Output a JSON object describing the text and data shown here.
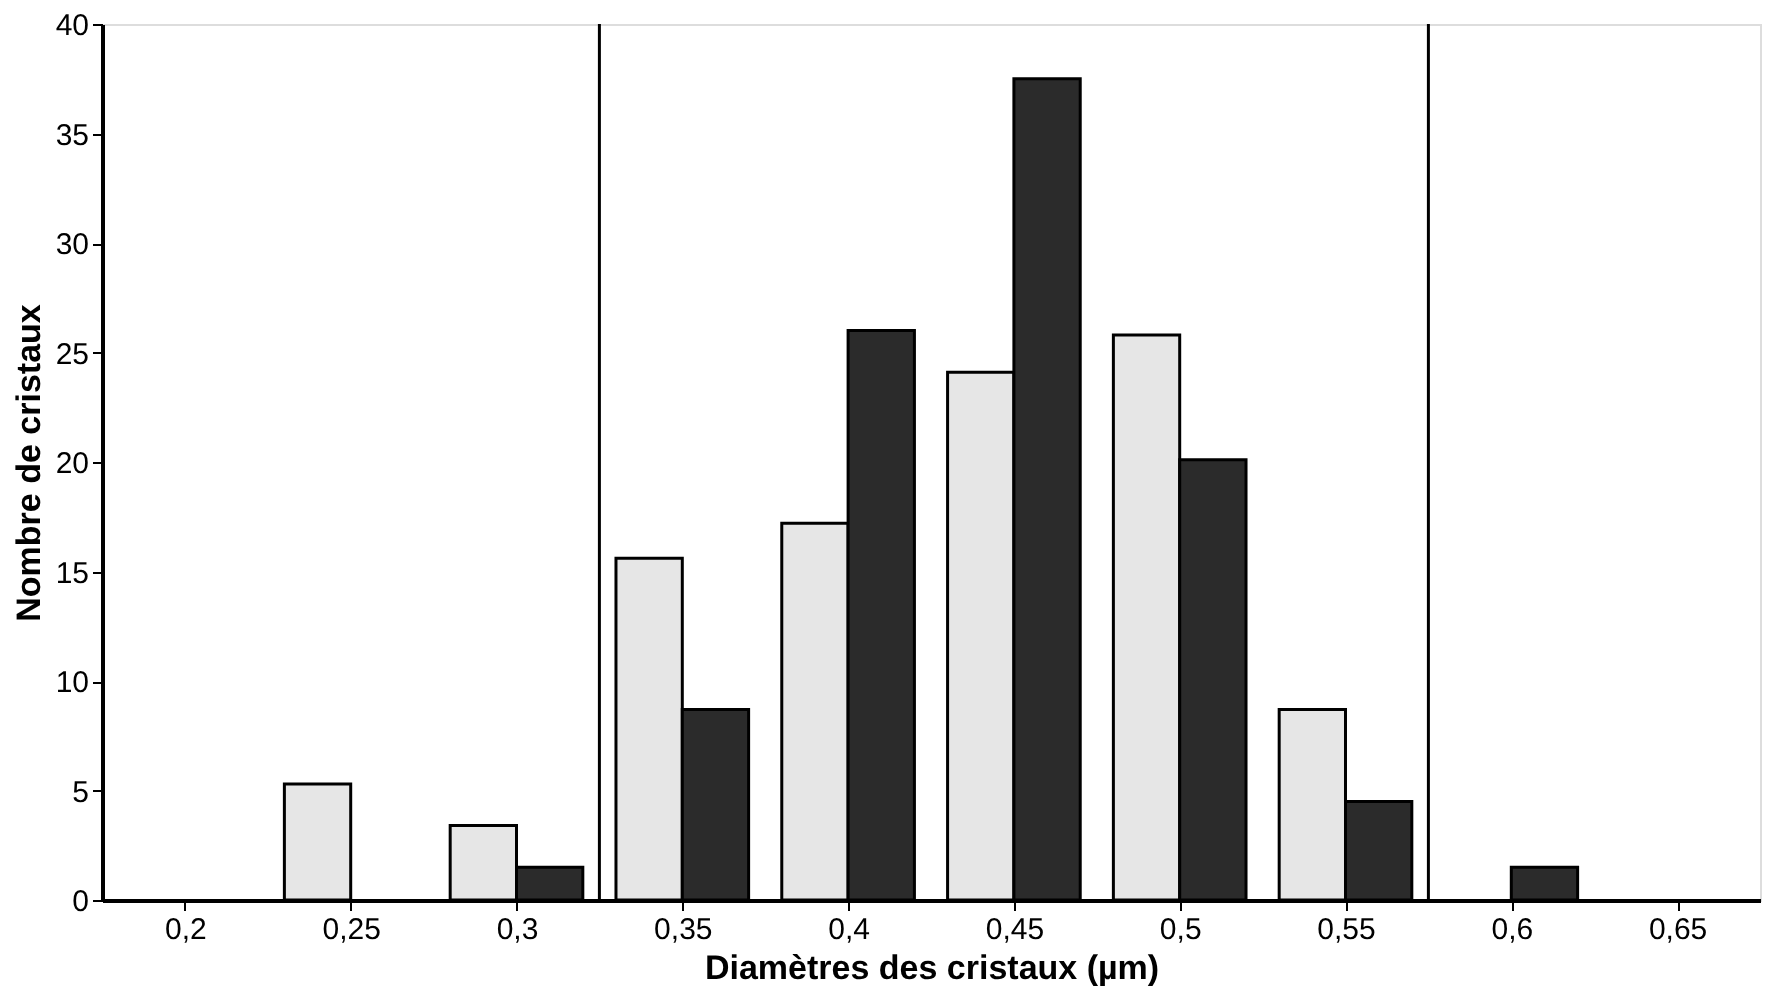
{
  "chart_data": {
    "type": "bar",
    "xlabel": "Diamètres des cristaux (µm)",
    "ylabel": "Nombre de cristaux",
    "x": [
      0.2,
      0.25,
      0.3,
      0.35,
      0.4,
      0.45,
      0.5,
      0.55,
      0.6,
      0.65
    ],
    "series": [
      {
        "color": "#e6e6e6",
        "values": [
          0,
          5.3,
          3.4,
          15.6,
          17.2,
          24.1,
          25.8,
          8.7,
          0,
          0
        ]
      },
      {
        "color": "#2b2b2b",
        "values": [
          0,
          0,
          1.5,
          8.7,
          26.0,
          37.5,
          20.1,
          4.5,
          1.5,
          0
        ]
      }
    ],
    "xlim": [
      0.175,
      0.675
    ],
    "xticks": [
      {
        "value": 0.2,
        "label": "0,2"
      },
      {
        "value": 0.25,
        "label": "0,25"
      },
      {
        "value": 0.3,
        "label": "0,3"
      },
      {
        "value": 0.35,
        "label": "0,35"
      },
      {
        "value": 0.4,
        "label": "0,4"
      },
      {
        "value": 0.45,
        "label": "0,45"
      },
      {
        "value": 0.5,
        "label": "0,5"
      },
      {
        "value": 0.55,
        "label": "0,55"
      },
      {
        "value": 0.6,
        "label": "0,6"
      },
      {
        "value": 0.65,
        "label": "0,65"
      }
    ],
    "ylim": [
      0,
      40
    ],
    "yticks": [
      0,
      5,
      10,
      15,
      20,
      25,
      30,
      35,
      40
    ],
    "ref_lines": [
      {
        "axis": "x",
        "value": 0.325,
        "color": "#000000"
      },
      {
        "axis": "x",
        "value": 0.575,
        "color": "#000000"
      }
    ],
    "grid": false,
    "legend": false
  }
}
